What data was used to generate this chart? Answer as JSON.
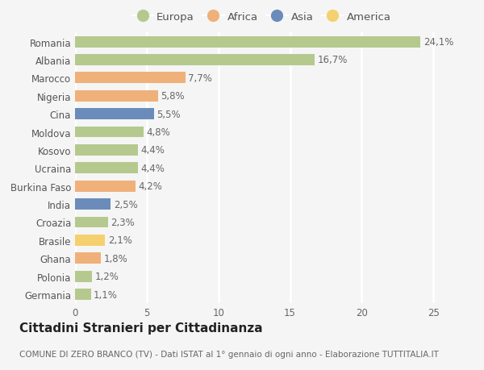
{
  "categories": [
    "Romania",
    "Albania",
    "Marocco",
    "Nigeria",
    "Cina",
    "Moldova",
    "Kosovo",
    "Ucraina",
    "Burkina Faso",
    "India",
    "Croazia",
    "Brasile",
    "Ghana",
    "Polonia",
    "Germania"
  ],
  "values": [
    24.1,
    16.7,
    7.7,
    5.8,
    5.5,
    4.8,
    4.4,
    4.4,
    4.2,
    2.5,
    2.3,
    2.1,
    1.8,
    1.2,
    1.1
  ],
  "labels": [
    "24,1%",
    "16,7%",
    "7,7%",
    "5,8%",
    "5,5%",
    "4,8%",
    "4,4%",
    "4,4%",
    "4,2%",
    "2,5%",
    "2,3%",
    "2,1%",
    "1,8%",
    "1,2%",
    "1,1%"
  ],
  "continents": [
    "Europa",
    "Europa",
    "Africa",
    "Africa",
    "Asia",
    "Europa",
    "Europa",
    "Europa",
    "Africa",
    "Asia",
    "Europa",
    "America",
    "Africa",
    "Europa",
    "Europa"
  ],
  "colors": {
    "Europa": "#b5c98e",
    "Africa": "#f0b07a",
    "Asia": "#6b8cba",
    "America": "#f5d06e"
  },
  "title": "Cittadini Stranieri per Cittadinanza",
  "subtitle": "COMUNE DI ZERO BRANCO (TV) - Dati ISTAT al 1° gennaio di ogni anno - Elaborazione TUTTITALIA.IT",
  "xlim": [
    0,
    26
  ],
  "xticks": [
    0,
    5,
    10,
    15,
    20,
    25
  ],
  "background_color": "#f5f5f5",
  "grid_color": "#ffffff",
  "bar_height": 0.62,
  "label_fontsize": 8.5,
  "tick_fontsize": 8.5,
  "title_fontsize": 11,
  "subtitle_fontsize": 7.5,
  "legend_fontsize": 9.5
}
